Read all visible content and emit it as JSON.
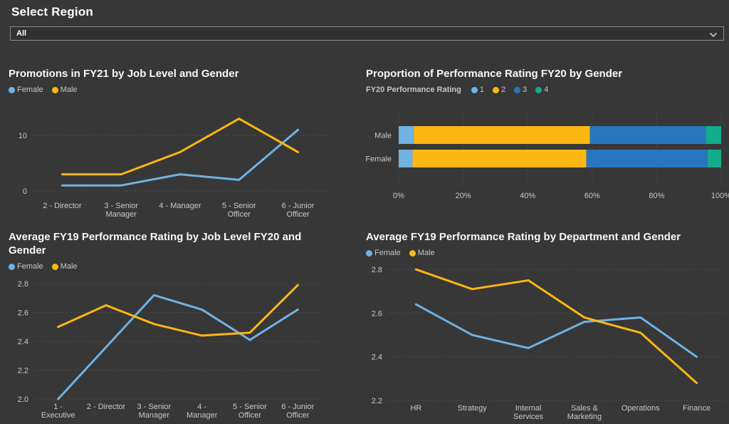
{
  "page": {
    "background": "#373737"
  },
  "header": {
    "title": "Select Region"
  },
  "region_filter": {
    "value": "All"
  },
  "chart_data": [
    {
      "id": "promotions-fy21",
      "type": "line",
      "title": "Promotions in FY21 by Job Level and Gender",
      "categories": [
        "2 - Director",
        "3 - Senior\nManager",
        "4 - Manager",
        "5 - Senior\nOfficer",
        "6 - Junior\nOfficer"
      ],
      "series": [
        {
          "name": "Female",
          "color": "#6FB2E4",
          "values": [
            1,
            1,
            3,
            2,
            11
          ]
        },
        {
          "name": "Male",
          "color": "#FDB713",
          "values": [
            3,
            3,
            7,
            13,
            7
          ]
        }
      ],
      "ylim": [
        0,
        13.5
      ],
      "yticks": [
        0,
        10
      ],
      "ytick_decimals": 0,
      "grid": "horizontal-dotted",
      "legend_position": "top-left"
    },
    {
      "id": "rating-proportion-fy20",
      "type": "stacked-bar-100",
      "title": "Proportion of Performance Rating FY20 by Gender",
      "legend_title": "FY20 Performance Rating",
      "categories": [
        "Male",
        "Female"
      ],
      "segments": [
        {
          "name": "1",
          "color": "#6FB2E4",
          "values": [
            4.7,
            4.3
          ]
        },
        {
          "name": "2",
          "color": "#FDB713",
          "values": [
            54.6,
            53.9
          ]
        },
        {
          "name": "3",
          "color": "#2877BE",
          "values": [
            36.0,
            37.6
          ]
        },
        {
          "name": "4",
          "color": "#12AD8D",
          "values": [
            4.7,
            4.2
          ]
        }
      ],
      "xlim": [
        0,
        100
      ],
      "xticks": [
        0,
        20,
        40,
        60,
        80,
        100
      ],
      "xtick_suffix": "%",
      "grid": "vertical-dotted"
    },
    {
      "id": "avg-rating-job-level",
      "type": "line",
      "title": "Average FY19 Performance Rating by Job Level FY20 and Gender",
      "categories": [
        "1 -\nExecutive",
        "2 - Director",
        "3 - Senior\nManager",
        "4 -\nManager",
        "5 - Senior\nOfficer",
        "6 - Junior\nOfficer"
      ],
      "series": [
        {
          "name": "Female",
          "color": "#6FB2E4",
          "values": [
            2.0,
            2.36,
            2.72,
            2.62,
            2.41,
            2.62
          ]
        },
        {
          "name": "Male",
          "color": "#FDB713",
          "values": [
            2.5,
            2.65,
            2.52,
            2.44,
            2.46,
            2.79
          ]
        }
      ],
      "ylim": [
        2.0,
        2.8
      ],
      "yticks": [
        2.0,
        2.2,
        2.4,
        2.6,
        2.8
      ],
      "ytick_decimals": 1,
      "grid": "horizontal-dotted",
      "legend_position": "top-left"
    },
    {
      "id": "avg-rating-department",
      "type": "line",
      "title": "Average FY19 Performance Rating by Department and Gender",
      "categories": [
        "HR",
        "Strategy",
        "Internal\nServices",
        "Sales &\nMarketing",
        "Operations",
        "Finance"
      ],
      "series": [
        {
          "name": "Female",
          "color": "#6FB2E4",
          "values": [
            2.64,
            2.5,
            2.44,
            2.56,
            2.58,
            2.4
          ]
        },
        {
          "name": "Male",
          "color": "#FDB713",
          "values": [
            2.8,
            2.71,
            2.75,
            2.58,
            2.51,
            2.28
          ]
        }
      ],
      "ylim": [
        2.2,
        2.8
      ],
      "yticks": [
        2.2,
        2.4,
        2.6,
        2.8
      ],
      "ytick_decimals": 1,
      "grid": "horizontal-dotted",
      "legend_position": "top-left"
    }
  ]
}
